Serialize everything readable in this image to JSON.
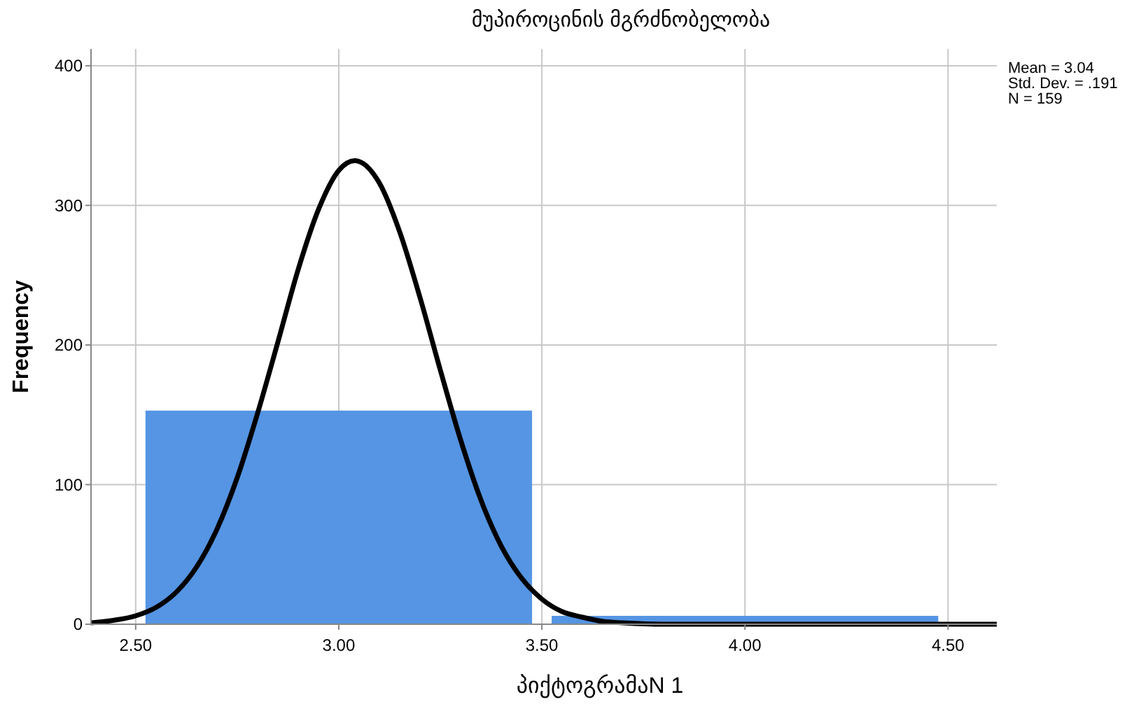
{
  "chart_data": {
    "type": "histogram",
    "title": "მუპიროცინის მგრძნობელობა",
    "xlabel": "პიქტოგრამაN 1",
    "ylabel": "Frequency",
    "bins": [
      2.5,
      3.5,
      4.5
    ],
    "values": [
      153,
      6
    ],
    "color": "#5595e3",
    "series": [
      {
        "type": "line",
        "color": "#000000",
        "x": [
          2.39,
          2.45,
          2.5,
          2.55,
          2.6,
          2.65,
          2.7,
          2.75,
          2.8,
          2.85,
          2.9,
          2.95,
          3.0,
          3.04,
          3.1,
          3.15,
          3.2,
          3.25,
          3.3,
          3.35,
          3.4,
          3.45,
          3.5,
          3.55,
          3.6,
          3.65,
          3.7,
          3.8,
          3.9,
          4.62
        ],
        "values": [
          1,
          3,
          6,
          12,
          23,
          41,
          68,
          105,
          151,
          202,
          254,
          297,
          325,
          332,
          316,
          281,
          234,
          182,
          132,
          89,
          56,
          33,
          18,
          9,
          5,
          2,
          1,
          0,
          0,
          0
        ]
      }
    ],
    "xlim": [
      2.39,
      4.62
    ],
    "ylim": [
      0,
      412
    ],
    "xticks": [
      {
        "value": 2.5,
        "label": "2.50"
      },
      {
        "value": 3,
        "label": "3.00"
      },
      {
        "value": 3.5,
        "label": "3.50"
      },
      {
        "value": 4,
        "label": "4.00"
      },
      {
        "value": 4.5,
        "label": "4.50"
      }
    ],
    "yticks": [
      0,
      100,
      200,
      300,
      400
    ],
    "grid": true,
    "annotations": [
      "Mean = 3.04",
      "Std. Dev. = .191",
      "N = 159"
    ]
  }
}
